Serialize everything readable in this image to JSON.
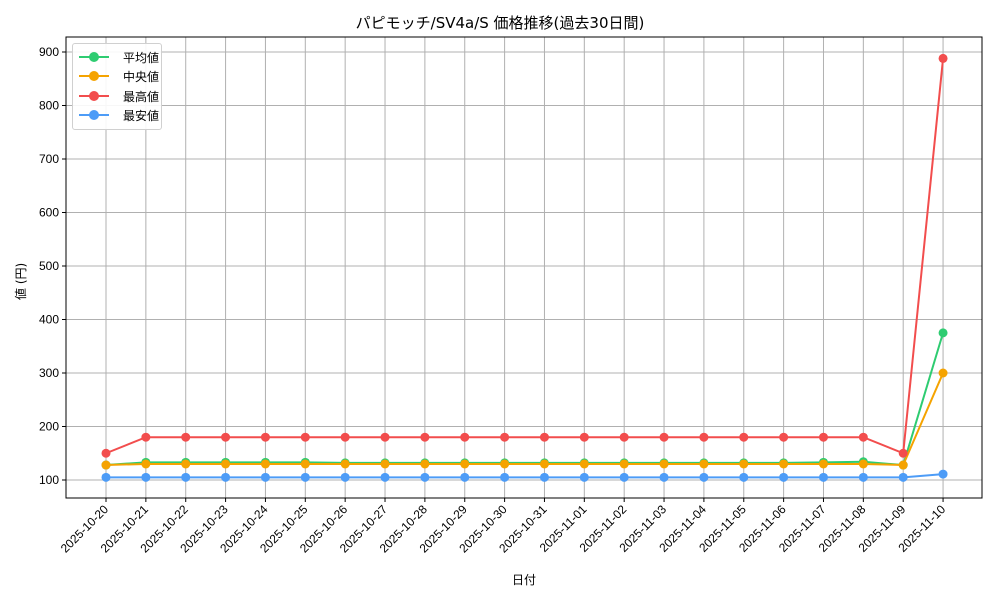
{
  "chart_data": {
    "type": "line",
    "title": "パピモッチ/SV4a/S 価格推移(過去30日間)",
    "xlabel": "日付",
    "ylabel": "値 (円)",
    "categories": [
      "2025-10-20",
      "2025-10-21",
      "2025-10-22",
      "2025-10-23",
      "2025-10-24",
      "2025-10-25",
      "2025-10-26",
      "2025-10-27",
      "2025-10-28",
      "2025-10-29",
      "2025-10-30",
      "2025-10-31",
      "2025-11-01",
      "2025-11-02",
      "2025-11-03",
      "2025-11-04",
      "2025-11-05",
      "2025-11-06",
      "2025-11-07",
      "2025-11-08",
      "2025-11-09",
      "2025-11-10"
    ],
    "series": [
      {
        "name": "平均値",
        "color": "#2ecc71",
        "values": [
          128,
          133,
          133,
          133,
          133,
          133,
          132,
          132,
          132,
          132,
          132,
          132,
          132,
          132,
          132,
          132,
          132,
          132,
          133,
          134,
          128,
          375
        ]
      },
      {
        "name": "中央値",
        "color": "#f5a300",
        "values": [
          128,
          130,
          130,
          130,
          130,
          130,
          130,
          130,
          130,
          130,
          130,
          130,
          130,
          130,
          130,
          130,
          130,
          130,
          130,
          130,
          128,
          300
        ]
      },
      {
        "name": "最高値",
        "color": "#f24d4d",
        "values": [
          150,
          180,
          180,
          180,
          180,
          180,
          180,
          180,
          180,
          180,
          180,
          180,
          180,
          180,
          180,
          180,
          180,
          180,
          180,
          180,
          150,
          888
        ]
      },
      {
        "name": "最安値",
        "color": "#4d9cf7",
        "values": [
          105,
          105,
          105,
          105,
          105,
          105,
          105,
          105,
          105,
          105,
          105,
          105,
          105,
          105,
          105,
          105,
          105,
          105,
          105,
          105,
          105,
          111
        ]
      }
    ],
    "yticks": [
      100,
      200,
      300,
      400,
      500,
      600,
      700,
      800,
      900
    ],
    "ylim": [
      65,
      925
    ],
    "grid": true,
    "legend_position": "upper left"
  }
}
